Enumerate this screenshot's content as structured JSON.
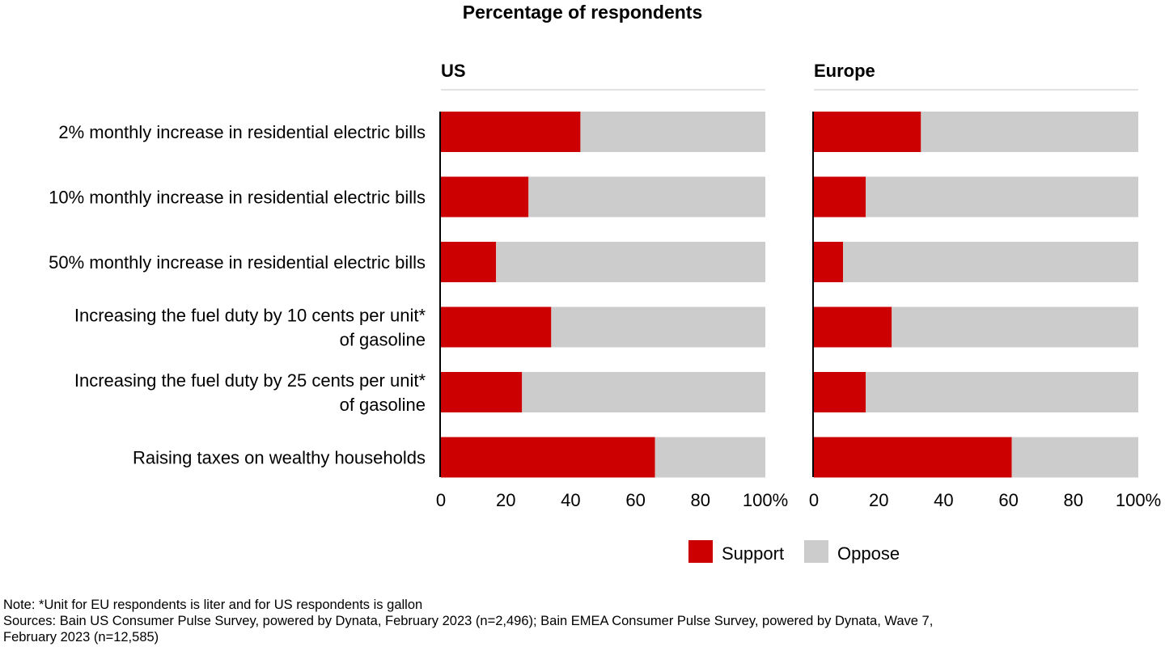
{
  "chart_data": {
    "type": "bar",
    "stacked": true,
    "orientation": "horizontal",
    "title": "Percentage of respondents",
    "categories": [
      "2% monthly increase in residential electric bills",
      "10% monthly increase in residential electric bills",
      "50% monthly increase in residential electric bills",
      "Increasing the fuel duty by 10 cents per unit* of gasoline",
      "Increasing the fuel duty by 25 cents per unit* of gasoline",
      "Raising taxes on wealthy households"
    ],
    "category_lines": [
      [
        "2% monthly increase in residential electric bills"
      ],
      [
        "10% monthly increase in residential electric bills"
      ],
      [
        "50% monthly increase in residential electric bills"
      ],
      [
        "Increasing the fuel duty by 10 cents per unit*",
        "of gasoline"
      ],
      [
        "Increasing the fuel duty by 25 cents per unit*",
        "of gasoline"
      ],
      [
        "Raising taxes on wealthy households"
      ]
    ],
    "panels": [
      {
        "name": "US",
        "series": [
          {
            "name": "Support",
            "values": [
              43,
              27,
              17,
              34,
              25,
              66
            ]
          },
          {
            "name": "Oppose",
            "values": [
              57,
              73,
              83,
              66,
              75,
              34
            ]
          }
        ]
      },
      {
        "name": "Europe",
        "series": [
          {
            "name": "Support",
            "values": [
              33,
              16,
              9,
              24,
              16,
              61
            ]
          },
          {
            "name": "Oppose",
            "values": [
              67,
              84,
              91,
              76,
              84,
              39
            ]
          }
        ]
      }
    ],
    "xlim": [
      0,
      100
    ],
    "xticks": [
      "0",
      "20",
      "40",
      "60",
      "80",
      "100%"
    ],
    "legend": {
      "placement": "bottom",
      "items": [
        "Support",
        "Oppose"
      ]
    },
    "colors": {
      "Support": "#cc0000",
      "Oppose": "#cccccc",
      "axis": "#000000",
      "rule": "#d9d9d9"
    },
    "grid": false
  },
  "notes": {
    "note": "Note: *Unit for EU respondents is liter and for US respondents is gallon",
    "sources_line1": "Sources: Bain US Consumer Pulse Survey, powered by Dynata, February 2023 (n=2,496); Bain EMEA Consumer Pulse Survey, powered by Dynata, Wave 7,",
    "sources_line2": "February 2023 (n=12,585)"
  }
}
